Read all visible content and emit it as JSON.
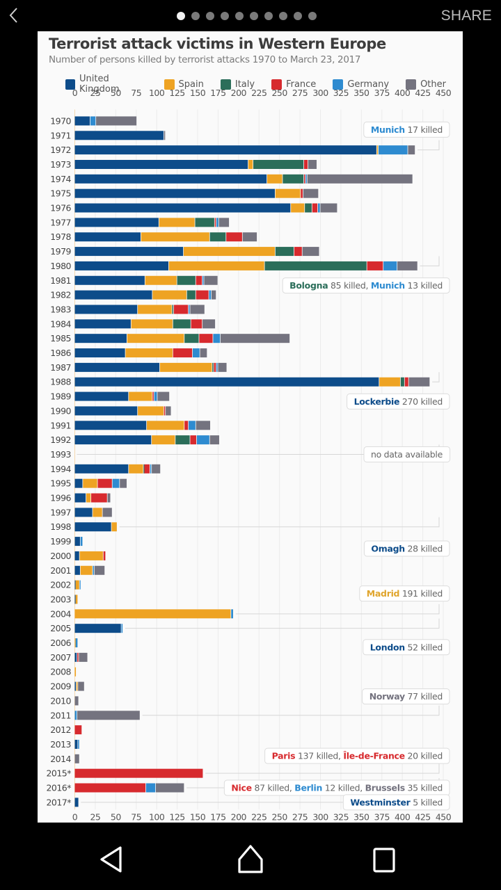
{
  "statusbar": {
    "back_icon": "chevron-left-icon",
    "share_label": "SHARE",
    "page_indicator": {
      "total": 10,
      "active": 1
    }
  },
  "navbar": {
    "back_icon": "triangle-back-icon",
    "home_icon": "home-icon",
    "recents_icon": "square-recents-icon"
  },
  "colors": {
    "United Kingdom": "#0d4c8a",
    "Spain": "#eea323",
    "Italy": "#2b6e5a",
    "France": "#d72a2e",
    "Germany": "#2e8bd0",
    "Other": "#74737f"
  },
  "chart_data": {
    "type": "bar",
    "orientation": "horizontal-stacked",
    "title": "Terrorist attack victims in Western Europe",
    "subtitle": "Number of persons killed by terrorist attacks 1970 to March 23, 2017",
    "xlabel": "",
    "ylabel": "",
    "xlim": [
      0,
      450
    ],
    "xticks": [
      "0",
      "25",
      "50",
      "75",
      "100",
      "125",
      "150",
      "175",
      "200",
      "225",
      "250",
      "275",
      "300",
      "325",
      "350",
      "375",
      "400",
      "425",
      "450"
    ],
    "grid": true,
    "legend_position": "top",
    "series_names": [
      "United Kingdom",
      "Spain",
      "Italy",
      "France",
      "Germany",
      "Other"
    ],
    "categories": [
      "1970",
      "1971",
      "1972",
      "1973",
      "1974",
      "1975",
      "1976",
      "1977",
      "1978",
      "1979",
      "1980",
      "1981",
      "1982",
      "1983",
      "1984",
      "1985",
      "1986",
      "1987",
      "1988",
      "1989",
      "1990",
      "1991",
      "1992",
      "1993",
      "1994",
      "1995",
      "1996",
      "1997",
      "1998",
      "1999",
      "2000",
      "2001",
      "2002",
      "2003",
      "2004",
      "2005",
      "2006",
      "2007",
      "2008",
      "2009",
      "2010",
      "2011",
      "2012",
      "2013",
      "2014",
      "2015*",
      "2016*",
      "2017*"
    ],
    "series": [
      {
        "name": "United Kingdom",
        "values": [
          19,
          109,
          369,
          212,
          235,
          245,
          264,
          103,
          81,
          133,
          115,
          86,
          95,
          77,
          69,
          64,
          62,
          104,
          372,
          66,
          77,
          88,
          94,
          null,
          66,
          10,
          14,
          22,
          45,
          7,
          6,
          7,
          1,
          1,
          0,
          57,
          0,
          3,
          0,
          2,
          0,
          0,
          0,
          4,
          0,
          0,
          0,
          5
        ]
      },
      {
        "name": "Spain",
        "values": [
          0,
          0,
          2,
          6,
          19,
          31,
          17,
          44,
          84,
          112,
          117,
          39,
          42,
          42,
          51,
          70,
          58,
          64,
          26,
          29,
          32,
          46,
          29,
          null,
          18,
          18,
          6,
          12,
          7,
          0,
          29,
          15,
          5,
          3,
          191,
          0,
          1,
          0,
          2,
          2,
          0,
          0,
          0,
          0,
          0,
          0,
          0,
          0
        ]
      },
      {
        "name": "Italy",
        "values": [
          0,
          0,
          0,
          62,
          26,
          0,
          9,
          24,
          20,
          23,
          125,
          23,
          11,
          2,
          22,
          18,
          0,
          2,
          5,
          0,
          0,
          0,
          18,
          null,
          1,
          0,
          0,
          0,
          0,
          0,
          0,
          0,
          0,
          0,
          0,
          0,
          0,
          0,
          0,
          0,
          0,
          0,
          0,
          0,
          0,
          0,
          0,
          0
        ]
      },
      {
        "name": "France",
        "values": [
          0,
          0,
          0,
          5,
          2,
          3,
          7,
          2,
          20,
          10,
          20,
          8,
          16,
          18,
          14,
          17,
          24,
          3,
          5,
          2,
          2,
          5,
          8,
          null,
          7,
          18,
          20,
          0,
          0,
          0,
          3,
          0,
          0,
          0,
          0,
          0,
          0,
          2,
          0,
          0,
          0,
          0,
          9,
          0,
          0,
          157,
          87,
          0
        ]
      },
      {
        "name": "Germany",
        "values": [
          7,
          0,
          36,
          0,
          2,
          0,
          3,
          3,
          0,
          0,
          17,
          2,
          3,
          2,
          0,
          9,
          9,
          2,
          0,
          4,
          0,
          9,
          16,
          null,
          2,
          9,
          0,
          0,
          0,
          3,
          0,
          2,
          1,
          0,
          3,
          2,
          3,
          0,
          0,
          0,
          0,
          3,
          0,
          2,
          0,
          0,
          12,
          0
        ]
      },
      {
        "name": "Other",
        "values": [
          50,
          2,
          9,
          11,
          129,
          19,
          21,
          13,
          18,
          21,
          25,
          17,
          6,
          18,
          16,
          85,
          9,
          11,
          26,
          15,
          7,
          18,
          12,
          null,
          11,
          9,
          4,
          12,
          0,
          0,
          0,
          13,
          0,
          0,
          0,
          0,
          0,
          11,
          0,
          8,
          5,
          77,
          0,
          0,
          6,
          0,
          35,
          0
        ]
      }
    ],
    "annotations": [
      {
        "year": "1972",
        "parts": [
          {
            "text": "Munich",
            "bold": true,
            "color": "Germany"
          },
          {
            "text": " 17 killed",
            "bold": false
          }
        ]
      },
      {
        "year": "1980",
        "parts": [
          {
            "text": "Bologna",
            "bold": true,
            "color": "Italy"
          },
          {
            "text": " 85 killed, ",
            "bold": false
          },
          {
            "text": "Munich",
            "bold": true,
            "color": "Germany"
          },
          {
            "text": " 13 killed",
            "bold": false
          }
        ]
      },
      {
        "year": "1988",
        "parts": [
          {
            "text": "Lockerbie",
            "bold": true,
            "color": "United Kingdom"
          },
          {
            "text": " 270 killed",
            "bold": false
          }
        ]
      },
      {
        "year": "1993",
        "parts": [
          {
            "text": "no data available",
            "bold": false
          }
        ]
      },
      {
        "year": "1998",
        "parts": [
          {
            "text": "Omagh",
            "bold": true,
            "color": "United Kingdom"
          },
          {
            "text": " 28 killed",
            "bold": false
          }
        ]
      },
      {
        "year": "2004",
        "parts": [
          {
            "text": "Madrid",
            "bold": true,
            "color": "Spain"
          },
          {
            "text": " 191 killed",
            "bold": false
          }
        ]
      },
      {
        "year": "2005",
        "parts": [
          {
            "text": "London",
            "bold": true,
            "color": "United Kingdom"
          },
          {
            "text": " 52 killed",
            "bold": false
          }
        ]
      },
      {
        "year": "2011",
        "parts": [
          {
            "text": "Norway",
            "bold": true,
            "color": "Other"
          },
          {
            "text": " 77 killed",
            "bold": false
          }
        ]
      },
      {
        "year": "2015*",
        "parts": [
          {
            "text": "Paris",
            "bold": true,
            "color": "France"
          },
          {
            "text": " 137 killed, ",
            "bold": false
          },
          {
            "text": "Île-de-France",
            "bold": true,
            "color": "France"
          },
          {
            "text": " 20 killed",
            "bold": false
          }
        ]
      },
      {
        "year": "2016*",
        "parts": [
          {
            "text": "Nice",
            "bold": true,
            "color": "France"
          },
          {
            "text": " 87 killed, ",
            "bold": false
          },
          {
            "text": "Berlin",
            "bold": true,
            "color": "Germany"
          },
          {
            "text": " 12 killed, ",
            "bold": false
          },
          {
            "text": "Brussels",
            "bold": true,
            "color": "Other"
          },
          {
            "text": " 35 killed",
            "bold": false
          }
        ]
      },
      {
        "year": "2017*",
        "parts": [
          {
            "text": "Westminster",
            "bold": true,
            "color": "United Kingdom"
          },
          {
            "text": " 5 killed",
            "bold": false
          }
        ]
      }
    ]
  }
}
